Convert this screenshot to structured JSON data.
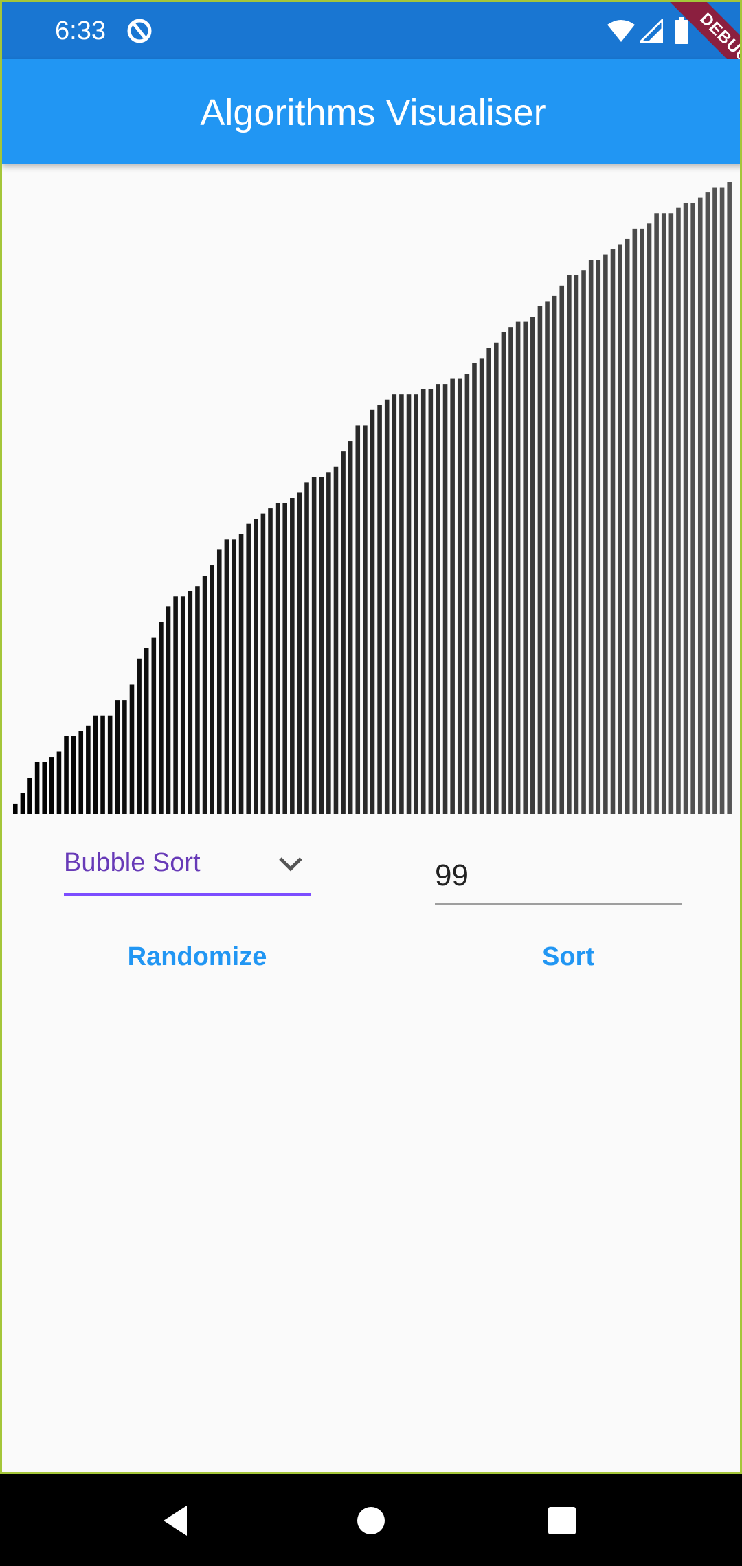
{
  "status_bar": {
    "time": "6:33",
    "icons": [
      "app-notification-icon",
      "wifi-icon",
      "cell-signal-icon",
      "battery-icon"
    ],
    "debug_ribbon": "DEBUG"
  },
  "app_bar": {
    "title": "Algorithms Visualiser",
    "color": "#2196f3"
  },
  "controls": {
    "algorithm_selected": "Bubble Sort",
    "count_value": "99",
    "randomize_label": "Randomize",
    "sort_label": "Sort",
    "accent_color": "#7c4dff",
    "button_color": "#2196f3"
  },
  "chart_data": {
    "type": "bar",
    "note_order": "ascending (sorted)",
    "bar_count": 99,
    "values": [
      2,
      4,
      7,
      10,
      10,
      11,
      12,
      15,
      15,
      16,
      17,
      19,
      19,
      19,
      22,
      22,
      25,
      30,
      32,
      34,
      37,
      40,
      42,
      42,
      43,
      44,
      46,
      48,
      51,
      53,
      53,
      54,
      56,
      57,
      58,
      59,
      60,
      60,
      61,
      62,
      64,
      65,
      65,
      66,
      67,
      70,
      72,
      75,
      75,
      78,
      79,
      80,
      81,
      81,
      81,
      81,
      82,
      82,
      83,
      83,
      84,
      84,
      85,
      87,
      88,
      90,
      91,
      93,
      94,
      95,
      95,
      96,
      98,
      99,
      100,
      102,
      104,
      104,
      105,
      107,
      107,
      108,
      109,
      110,
      111,
      113,
      113,
      114,
      116,
      116,
      116,
      117,
      118,
      118,
      119,
      120,
      121,
      121,
      122
    ],
    "ylim": [
      0,
      122
    ],
    "fade_from": "#000000",
    "fade_to": "#555555"
  },
  "nav_bar": {
    "buttons": [
      "back-icon",
      "home-icon",
      "recents-icon"
    ]
  }
}
